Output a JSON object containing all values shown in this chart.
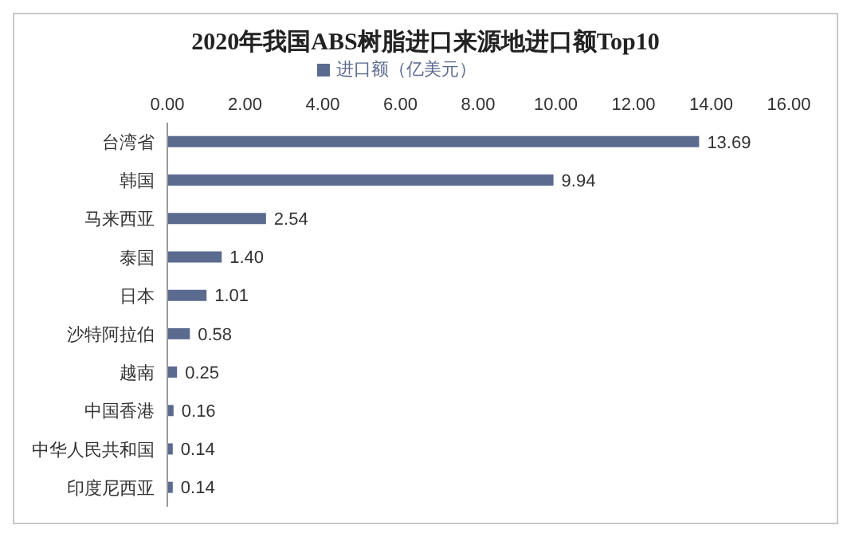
{
  "chart_data": {
    "type": "bar",
    "orientation": "horizontal",
    "title": "2020年我国ABS树脂进口来源地进口额Top10",
    "categories": [
      "台湾省",
      "韩国",
      "马来西亚",
      "泰国",
      "日本",
      "沙特阿拉伯",
      "越南",
      "中国香港",
      "中华人民共和国",
      "印度尼西亚"
    ],
    "series": [
      {
        "name": "进口额（亿美元）",
        "color": "#5b6a8f",
        "values": [
          13.69,
          9.94,
          2.54,
          1.4,
          1.01,
          0.58,
          0.25,
          0.16,
          0.14,
          0.14
        ],
        "value_labels": [
          "13.69",
          "9.94",
          "2.54",
          "1.40",
          "1.01",
          "0.58",
          "0.25",
          "0.16",
          "0.14",
          "0.14"
        ]
      }
    ],
    "xlim": [
      0,
      16
    ],
    "xticks": [
      {
        "value": 0,
        "label": "0.00"
      },
      {
        "value": 2,
        "label": "2.00"
      },
      {
        "value": 4,
        "label": "4.00"
      },
      {
        "value": 6,
        "label": "6.00"
      },
      {
        "value": 8,
        "label": "8.00"
      },
      {
        "value": 10,
        "label": "10.00"
      },
      {
        "value": 12,
        "label": "12.00"
      },
      {
        "value": 14,
        "label": "14.00"
      },
      {
        "value": 16,
        "label": "16.00"
      }
    ],
    "legend": "top",
    "grid": false
  }
}
